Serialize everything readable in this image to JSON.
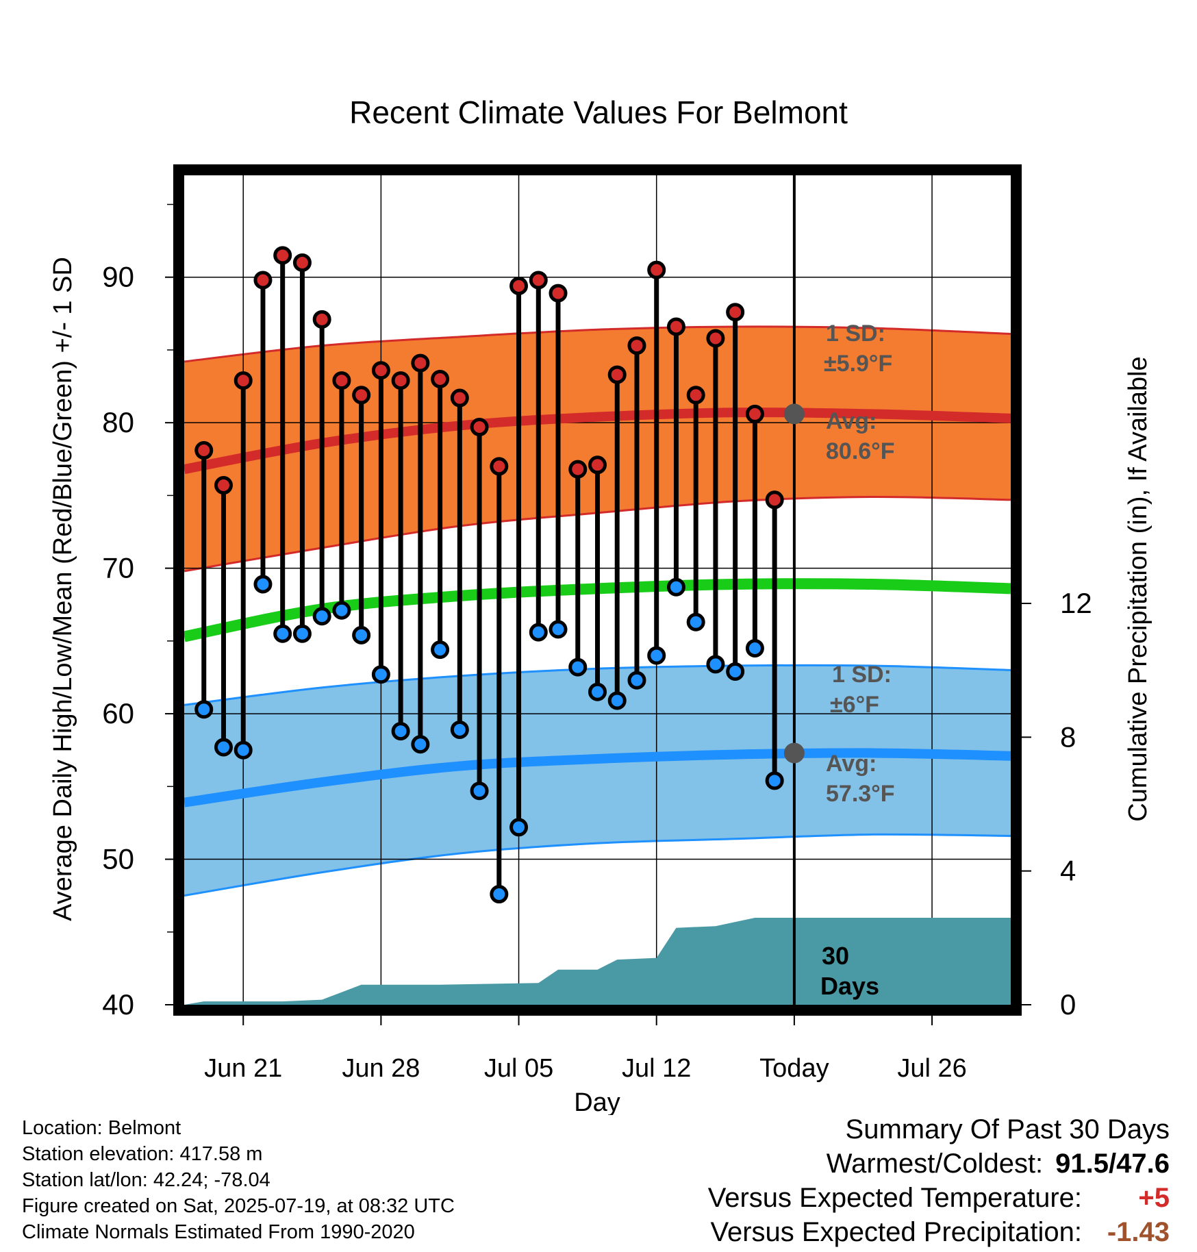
{
  "chart_data": {
    "type": "line",
    "title": "Recent Climate Values For Belmont",
    "xlabel": "Day",
    "ylabel_left": "Average Daily High/Low/Mean (Red/Blue/Green) +/- 1 SD",
    "ylabel_right": "Cumulative Precipitation (in), If Available",
    "ylim_left": [
      40,
      97
    ],
    "ylim_right": [
      0,
      24.8
    ],
    "x_range": [
      "2025-06-18",
      "2025-07-30"
    ],
    "x_ticks": [
      {
        "date": "2025-06-21",
        "label": "Jun 21"
      },
      {
        "date": "2025-06-28",
        "label": "Jun 28"
      },
      {
        "date": "2025-07-05",
        "label": "Jul 05"
      },
      {
        "date": "2025-07-12",
        "label": "Jul 12"
      },
      {
        "date": "2025-07-19",
        "label": "Today"
      },
      {
        "date": "2025-07-26",
        "label": "Jul 26"
      }
    ],
    "y_ticks_left": [
      40,
      50,
      60,
      70,
      80,
      90
    ],
    "y_ticks_right": [
      0,
      4,
      8,
      12
    ],
    "today": "2025-07-19",
    "grid": true,
    "observed": {
      "dates": [
        "2025-06-19",
        "2025-06-20",
        "2025-06-21",
        "2025-06-22",
        "2025-06-23",
        "2025-06-24",
        "2025-06-25",
        "2025-06-26",
        "2025-06-27",
        "2025-06-28",
        "2025-06-29",
        "2025-06-30",
        "2025-07-01",
        "2025-07-02",
        "2025-07-03",
        "2025-07-04",
        "2025-07-05",
        "2025-07-06",
        "2025-07-07",
        "2025-07-08",
        "2025-07-09",
        "2025-07-10",
        "2025-07-11",
        "2025-07-12",
        "2025-07-13",
        "2025-07-14",
        "2025-07-15",
        "2025-07-16",
        "2025-07-17",
        "2025-07-18"
      ],
      "highs": [
        78.1,
        75.7,
        82.9,
        89.8,
        91.5,
        91.0,
        87.1,
        82.9,
        81.9,
        83.6,
        82.9,
        84.1,
        83.0,
        81.7,
        79.7,
        77.0,
        89.4,
        89.8,
        88.9,
        76.8,
        77.1,
        83.3,
        85.3,
        90.5,
        86.6,
        81.9,
        85.8,
        87.6,
        80.6,
        74.7
      ],
      "lows": [
        60.3,
        57.7,
        57.5,
        68.9,
        65.5,
        65.5,
        66.7,
        67.1,
        65.4,
        62.7,
        58.8,
        57.9,
        64.4,
        58.9,
        54.7,
        47.6,
        52.2,
        65.6,
        65.8,
        63.2,
        61.5,
        60.9,
        62.3,
        64.0,
        68.7,
        66.3,
        63.4,
        62.9,
        64.5,
        55.4
      ]
    },
    "normals": {
      "dates": [
        "2025-06-18",
        "2025-06-25",
        "2025-07-02",
        "2025-07-09",
        "2025-07-16",
        "2025-07-23",
        "2025-07-30"
      ],
      "high_avg": [
        76.8,
        78.6,
        79.8,
        80.4,
        80.7,
        80.6,
        80.3
      ],
      "high_sd_upper": [
        84.2,
        85.3,
        85.9,
        86.4,
        86.6,
        86.5,
        86.1
      ],
      "high_sd_lower": [
        69.8,
        71.4,
        72.9,
        73.8,
        74.6,
        74.9,
        74.7
      ],
      "mean_avg": [
        65.3,
        67.2,
        68.1,
        68.6,
        68.9,
        68.9,
        68.6
      ],
      "low_avg": [
        53.9,
        55.3,
        56.4,
        56.9,
        57.2,
        57.3,
        57.1
      ],
      "low_sd_upper": [
        60.6,
        61.8,
        62.6,
        63.1,
        63.3,
        63.3,
        63.0
      ],
      "low_sd_lower": [
        47.5,
        49.1,
        50.4,
        51.1,
        51.4,
        51.7,
        51.6
      ]
    },
    "precip_cumulative": {
      "dates": [
        "2025-06-18",
        "2025-06-19",
        "2025-06-23",
        "2025-06-25",
        "2025-06-27",
        "2025-07-01",
        "2025-07-06",
        "2025-07-07",
        "2025-07-09",
        "2025-07-10",
        "2025-07-12",
        "2025-07-13",
        "2025-07-15",
        "2025-07-17",
        "2025-07-19",
        "2025-07-30"
      ],
      "values": [
        0.0,
        0.1,
        0.1,
        0.15,
        0.6,
        0.6,
        0.65,
        1.05,
        1.05,
        1.35,
        1.4,
        2.3,
        2.35,
        2.6,
        2.6,
        2.6
      ]
    },
    "colors": {
      "high_band": "#f47c30",
      "high_line": "#d32a2a",
      "low_band": "#82c1e8",
      "low_line": "#1e90ff",
      "mean_line": "#18cc18",
      "precip": "#4a9aa5",
      "high_marker": "#d32a2a",
      "low_marker": "#1e90ff"
    },
    "annotations": {
      "high_sd_label": "1 SD:",
      "high_sd_value": "±5.9°F",
      "high_avg_label": "Avg:",
      "high_avg_value": "80.6°F",
      "low_sd_label": "1 SD:",
      "low_sd_value": "±6°F",
      "low_avg_label": "Avg:",
      "low_avg_value": "57.3°F",
      "period_line1": "30",
      "period_line2": "Days"
    }
  },
  "footer": {
    "location": "Location: Belmont",
    "elevation": "Station elevation: 417.58 m",
    "latlon": "Station lat/lon: 42.24; -78.04",
    "created": "Figure created on Sat, 2025-07-19, at 08:32 UTC",
    "normals": "Climate Normals Estimated From 1990-2020"
  },
  "summary": {
    "heading": "Summary Of Past 30 Days",
    "warmest_label": "Warmest/Coldest:",
    "warmest_value": "91.5/47.6",
    "temp_label": "Versus Expected Temperature:",
    "temp_value": "+5",
    "temp_color": "#d32a2a",
    "precip_label": "Versus Expected Precipitation:",
    "precip_value": "-1.43",
    "precip_color": "#a0522d"
  }
}
